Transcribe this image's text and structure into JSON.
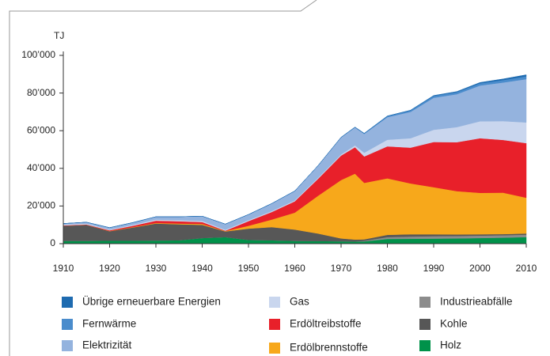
{
  "chart_data": {
    "type": "stacked_area",
    "y_axis_label": "TJ",
    "x": [
      1910,
      1915,
      1920,
      1925,
      1930,
      1935,
      1940,
      1945,
      1950,
      1955,
      1960,
      1965,
      1970,
      1973,
      1975,
      1980,
      1985,
      1990,
      1995,
      2000,
      2005,
      2010
    ],
    "xlim": [
      1910,
      2010
    ],
    "xticks": [
      1910,
      1920,
      1930,
      1940,
      1950,
      1960,
      1970,
      1980,
      1990,
      2000,
      2010
    ],
    "ylim": [
      0,
      100000
    ],
    "yticks": [
      0,
      {
        "value": 20000,
        "label": "20’000"
      },
      {
        "value": 40000,
        "label": "40’000"
      },
      {
        "value": 60000,
        "label": "60’000"
      },
      {
        "value": 80000,
        "label": "80’000"
      },
      {
        "value": 100000,
        "label": "100’000"
      }
    ],
    "series": [
      {
        "name": "Holz",
        "color": "#00924a",
        "values": [
          1500,
          1500,
          1600,
          1600,
          1700,
          1800,
          3000,
          3500,
          2000,
          1800,
          1500,
          1400,
          1300,
          1200,
          1200,
          2500,
          2600,
          2700,
          2800,
          3000,
          3200,
          3500
        ]
      },
      {
        "name": "Industrieabfälle",
        "color": "#8c8c8c",
        "values": [
          0,
          0,
          0,
          0,
          0,
          0,
          0,
          0,
          0,
          0,
          0,
          0,
          0,
          0,
          300,
          1000,
          1200,
          1300,
          1300,
          1300,
          1300,
          1300
        ]
      },
      {
        "name": "Kohle",
        "color": "#575757",
        "values": [
          8000,
          8500,
          5000,
          7000,
          9000,
          8500,
          7000,
          3000,
          6000,
          7000,
          6000,
          4000,
          1500,
          1000,
          800,
          1200,
          1200,
          1000,
          800,
          700,
          600,
          600
        ]
      },
      {
        "name": "Erdölbrennstoffe",
        "color": "#f7a81b",
        "values": [
          0,
          0,
          100,
          200,
          300,
          400,
          500,
          200,
          1500,
          4000,
          9000,
          20000,
          31000,
          35000,
          30000,
          30000,
          27000,
          25000,
          23000,
          22000,
          22000,
          19000
        ]
      },
      {
        "name": "Erdöltreibstoffe",
        "color": "#e8202a",
        "values": [
          200,
          200,
          400,
          700,
          1200,
          1200,
          1000,
          200,
          2500,
          4000,
          6000,
          9000,
          13000,
          14000,
          14000,
          17000,
          19000,
          24000,
          26000,
          29000,
          28000,
          29000
        ]
      },
      {
        "name": "Gas",
        "color": "#c9d6ee",
        "values": [
          500,
          500,
          400,
          500,
          600,
          600,
          600,
          500,
          500,
          500,
          500,
          500,
          600,
          1000,
          2000,
          3500,
          5000,
          6500,
          8000,
          9000,
          10000,
          11000
        ]
      },
      {
        "name": "Elektrizität",
        "color": "#94b3de",
        "values": [
          500,
          700,
          1000,
          1200,
          1500,
          1800,
          2500,
          3000,
          3000,
          4000,
          5000,
          6500,
          9000,
          9500,
          10000,
          12000,
          14000,
          17000,
          17500,
          19000,
          20500,
          23000
        ]
      },
      {
        "name": "Fernwärme",
        "color": "#4a8ccc",
        "values": [
          0,
          0,
          0,
          0,
          0,
          0,
          0,
          0,
          0,
          0,
          0,
          0,
          100,
          200,
          300,
          600,
          800,
          1000,
          1100,
          1200,
          1300,
          1500
        ]
      },
      {
        "name": "Übrige erneuerbare Energien",
        "color": "#1e6bb0",
        "values": [
          0,
          0,
          0,
          0,
          0,
          0,
          0,
          0,
          0,
          0,
          0,
          0,
          0,
          0,
          0,
          0,
          100,
          200,
          300,
          400,
          600,
          800
        ]
      }
    ]
  }
}
